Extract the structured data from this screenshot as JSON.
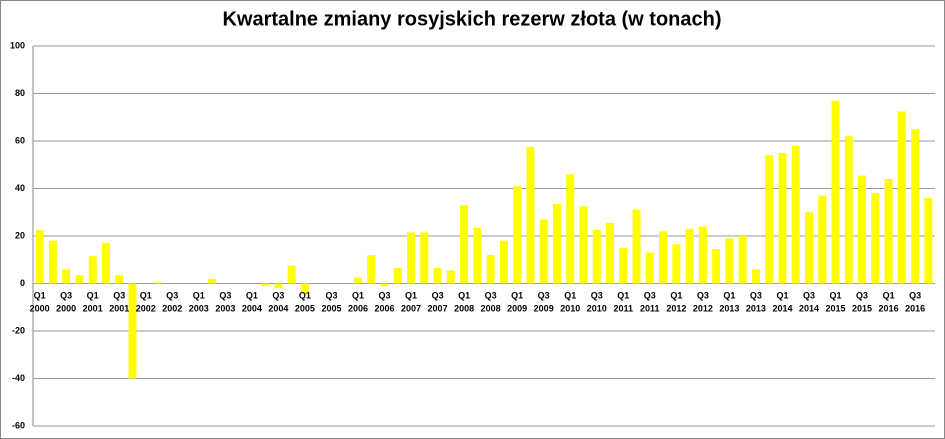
{
  "chart_data": {
    "type": "bar",
    "title": "Kwartalne zmiany rosyjskich rezerw złota (w tonach)",
    "categories": [
      "Q1 2000",
      null,
      "Q3 2000",
      null,
      "Q1 2001",
      null,
      "Q3 2001",
      null,
      "Q1 2002",
      null,
      "Q3 2002",
      null,
      "Q1 2003",
      null,
      "Q3 2003",
      null,
      "Q1 2004",
      null,
      "Q3 2004",
      null,
      "Q1 2005",
      null,
      "Q3 2005",
      null,
      "Q1 2006",
      null,
      "Q3 2006",
      null,
      "Q1 2007",
      null,
      "Q3 2007",
      null,
      "Q1 2008",
      null,
      "Q3 2008",
      null,
      "Q1 2009",
      null,
      "Q3 2009",
      null,
      "Q1 2010",
      null,
      "Q3 2010",
      null,
      "Q1 2011",
      null,
      "Q3 2011",
      null,
      "Q1 2012",
      null,
      "Q3 2012",
      null,
      "Q1 2013",
      null,
      "Q3 2013",
      null,
      "Q1 2014",
      null,
      "Q3 2014",
      null,
      "Q1 2015",
      null,
      "Q3 2015",
      null,
      "Q1 2016",
      null,
      "Q3 2016",
      null
    ],
    "values": [
      22.5,
      18,
      6,
      3.5,
      11.5,
      17,
      3.5,
      -40,
      0,
      0.5,
      0,
      0,
      0,
      2,
      0,
      0,
      0,
      -1,
      -2,
      7.5,
      -4.5,
      0,
      0,
      0,
      2.5,
      12,
      -1,
      6.5,
      21.5,
      21.5,
      6.5,
      5.5,
      33,
      23.5,
      12,
      18,
      41,
      57.5,
      27,
      33.5,
      46,
      32.5,
      22.5,
      25.5,
      15,
      31,
      13,
      22,
      16.5,
      23,
      24,
      14.5,
      19,
      20,
      6,
      54,
      55,
      58,
      30,
      37,
      77,
      62,
      45.5,
      38,
      44,
      72.5,
      65,
      36
    ],
    "color": "#ffff00",
    "ylim": [
      -60,
      100
    ],
    "yticks": [
      -60,
      -40,
      -20,
      0,
      20,
      40,
      60,
      80,
      100
    ],
    "grid": true
  }
}
